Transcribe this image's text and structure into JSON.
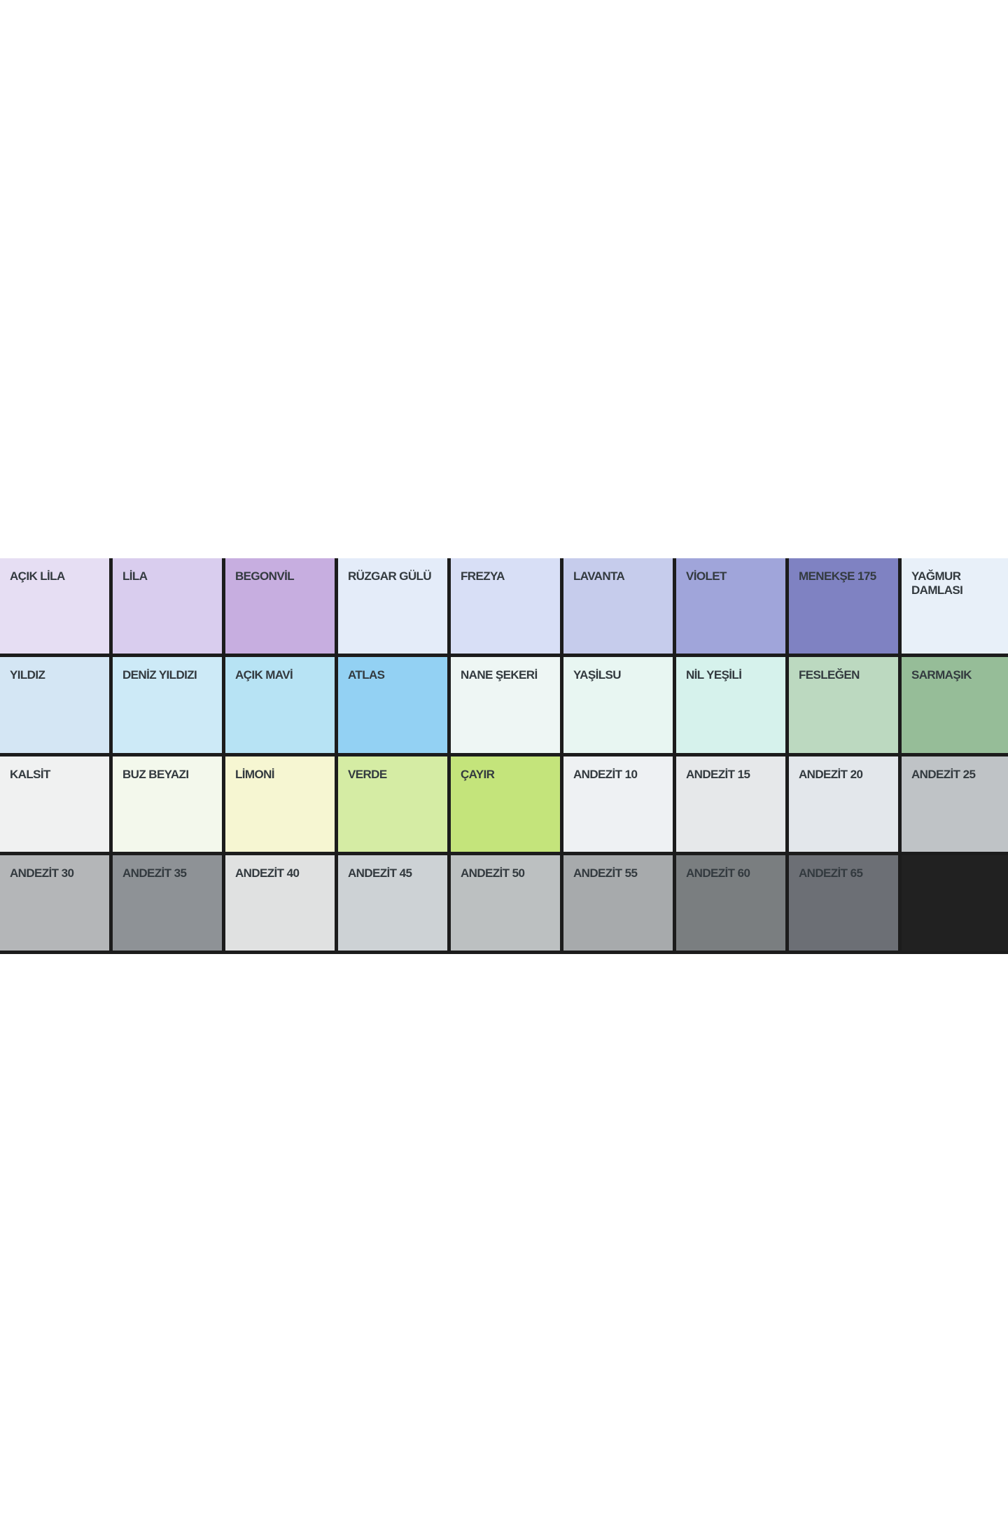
{
  "swatches": [
    {
      "name": "AÇIK LİLA",
      "color": "#e6def3"
    },
    {
      "name": "LİLA",
      "color": "#d9cdee"
    },
    {
      "name": "BEGONVİL",
      "color": "#c7aee0"
    },
    {
      "name": "RÜZGAR GÜLÜ",
      "color": "#e4ecf9"
    },
    {
      "name": "FREZYA",
      "color": "#d8dff6"
    },
    {
      "name": "LAVANTA",
      "color": "#c6ccec"
    },
    {
      "name": "VİOLET",
      "color": "#a0a5da"
    },
    {
      "name": "MENEKŞE 175",
      "color": "#7f82c2"
    },
    {
      "name": "YAĞMUR DAMLASI",
      "color": "#e8f0f9"
    },
    {
      "name": "YILDIZ",
      "color": "#d4e6f4"
    },
    {
      "name": "DENİZ YILDIZI",
      "color": "#cdeaf7"
    },
    {
      "name": "AÇIK MAVİ",
      "color": "#b7e3f4"
    },
    {
      "name": "ATLAS",
      "color": "#93d1f3"
    },
    {
      "name": "NANE ŞEKERİ",
      "color": "#eef6f4"
    },
    {
      "name": "YAŞİLSU",
      "color": "#e8f6f2"
    },
    {
      "name": "NİL YEŞİLİ",
      "color": "#d6f2ec"
    },
    {
      "name": "FESLEĞEN",
      "color": "#bcd9c0"
    },
    {
      "name": "SARMAŞIK",
      "color": "#96bd98"
    },
    {
      "name": "KALSİT",
      "color": "#f0f1f1"
    },
    {
      "name": "BUZ BEYAZI",
      "color": "#f3f8ec"
    },
    {
      "name": "LİMONİ",
      "color": "#f6f6d2"
    },
    {
      "name": "VERDE",
      "color": "#d5eca4"
    },
    {
      "name": "ÇAYIR",
      "color": "#c4e47b"
    },
    {
      "name": "ANDEZİT 10",
      "color": "#eef1f3"
    },
    {
      "name": "ANDEZİT 15",
      "color": "#e6e8ea"
    },
    {
      "name": "ANDEZİT 20",
      "color": "#e3e7eb"
    },
    {
      "name": "ANDEZİT 25",
      "color": "#bfc3c6"
    },
    {
      "name": "ANDEZİT 30",
      "color": "#b4b6b8"
    },
    {
      "name": "ANDEZİT 35",
      "color": "#8e9296"
    },
    {
      "name": "ANDEZİT 40",
      "color": "#e0e1e1"
    },
    {
      "name": "ANDEZİT 45",
      "color": "#cdd2d5"
    },
    {
      "name": "ANDEZİT 50",
      "color": "#bcc0c1"
    },
    {
      "name": "ANDEZİT 55",
      "color": "#a7aaac"
    },
    {
      "name": "ANDEZİT 60",
      "color": "#7a7e80"
    },
    {
      "name": "ANDEZİT 65",
      "color": "#6c6f75"
    },
    {
      "name": "",
      "color": "#212121"
    }
  ]
}
